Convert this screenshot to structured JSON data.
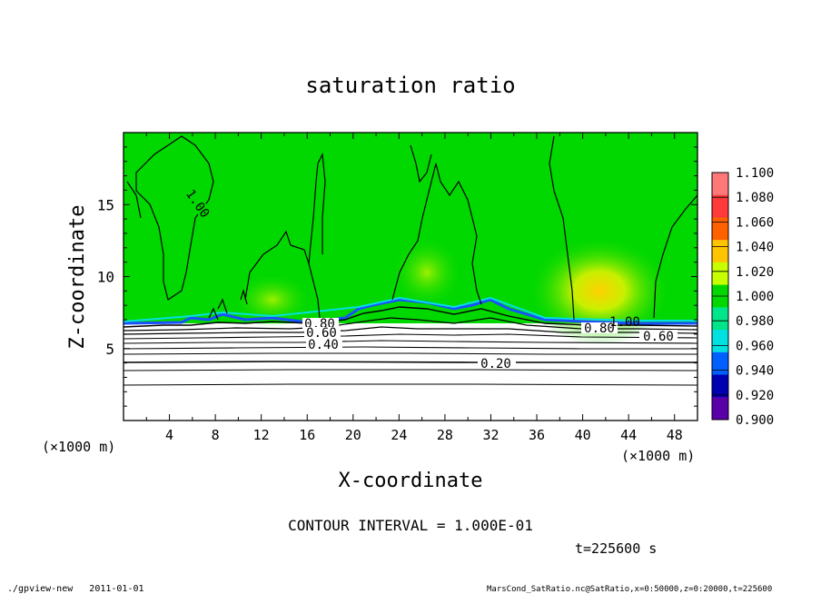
{
  "chart_data": {
    "type": "heatmap",
    "title": "saturation ratio",
    "xlabel": "X-coordinate",
    "ylabel": "Z-coordinate",
    "x_unit": "(×1000 m)",
    "z_unit": "(×1000 m)",
    "xlim": [
      0,
      50
    ],
    "ylim": [
      0,
      20
    ],
    "x_ticks": [
      "4",
      "8",
      "12",
      "16",
      "20",
      "24",
      "28",
      "32",
      "36",
      "40",
      "44",
      "48"
    ],
    "y_ticks": [
      "5",
      "10",
      "15"
    ],
    "colorbar": {
      "labels": [
        "1.100",
        "1.080",
        "1.060",
        "1.040",
        "1.020",
        "1.000",
        "0.980",
        "0.960",
        "0.940",
        "0.920",
        "0.900"
      ],
      "colors": [
        "#ff7878",
        "#ff3a3a",
        "#ff6000",
        "#ffc400",
        "#c8ff00",
        "#00d800",
        "#00e58a",
        "#00e0e0",
        "#0060ff",
        "#0000b0",
        "#5a00a8"
      ]
    },
    "contour_levels": [
      0.2,
      0.4,
      0.6,
      0.8,
      1.0
    ],
    "contour_labels": [
      "1.00",
      "0.80",
      "0.60",
      "0.40",
      "0.20",
      "0.80",
      "1.00",
      "0.60"
    ],
    "contour_interval": "CONTOUR INTERVAL = 1.000E-01",
    "time": "t=225600 s"
  },
  "footer": {
    "left": "./gpview-new   2011-01-01",
    "right": "MarsCond_SatRatio.nc@SatRatio,x=0:50000,z=0:20000,t=225600"
  }
}
